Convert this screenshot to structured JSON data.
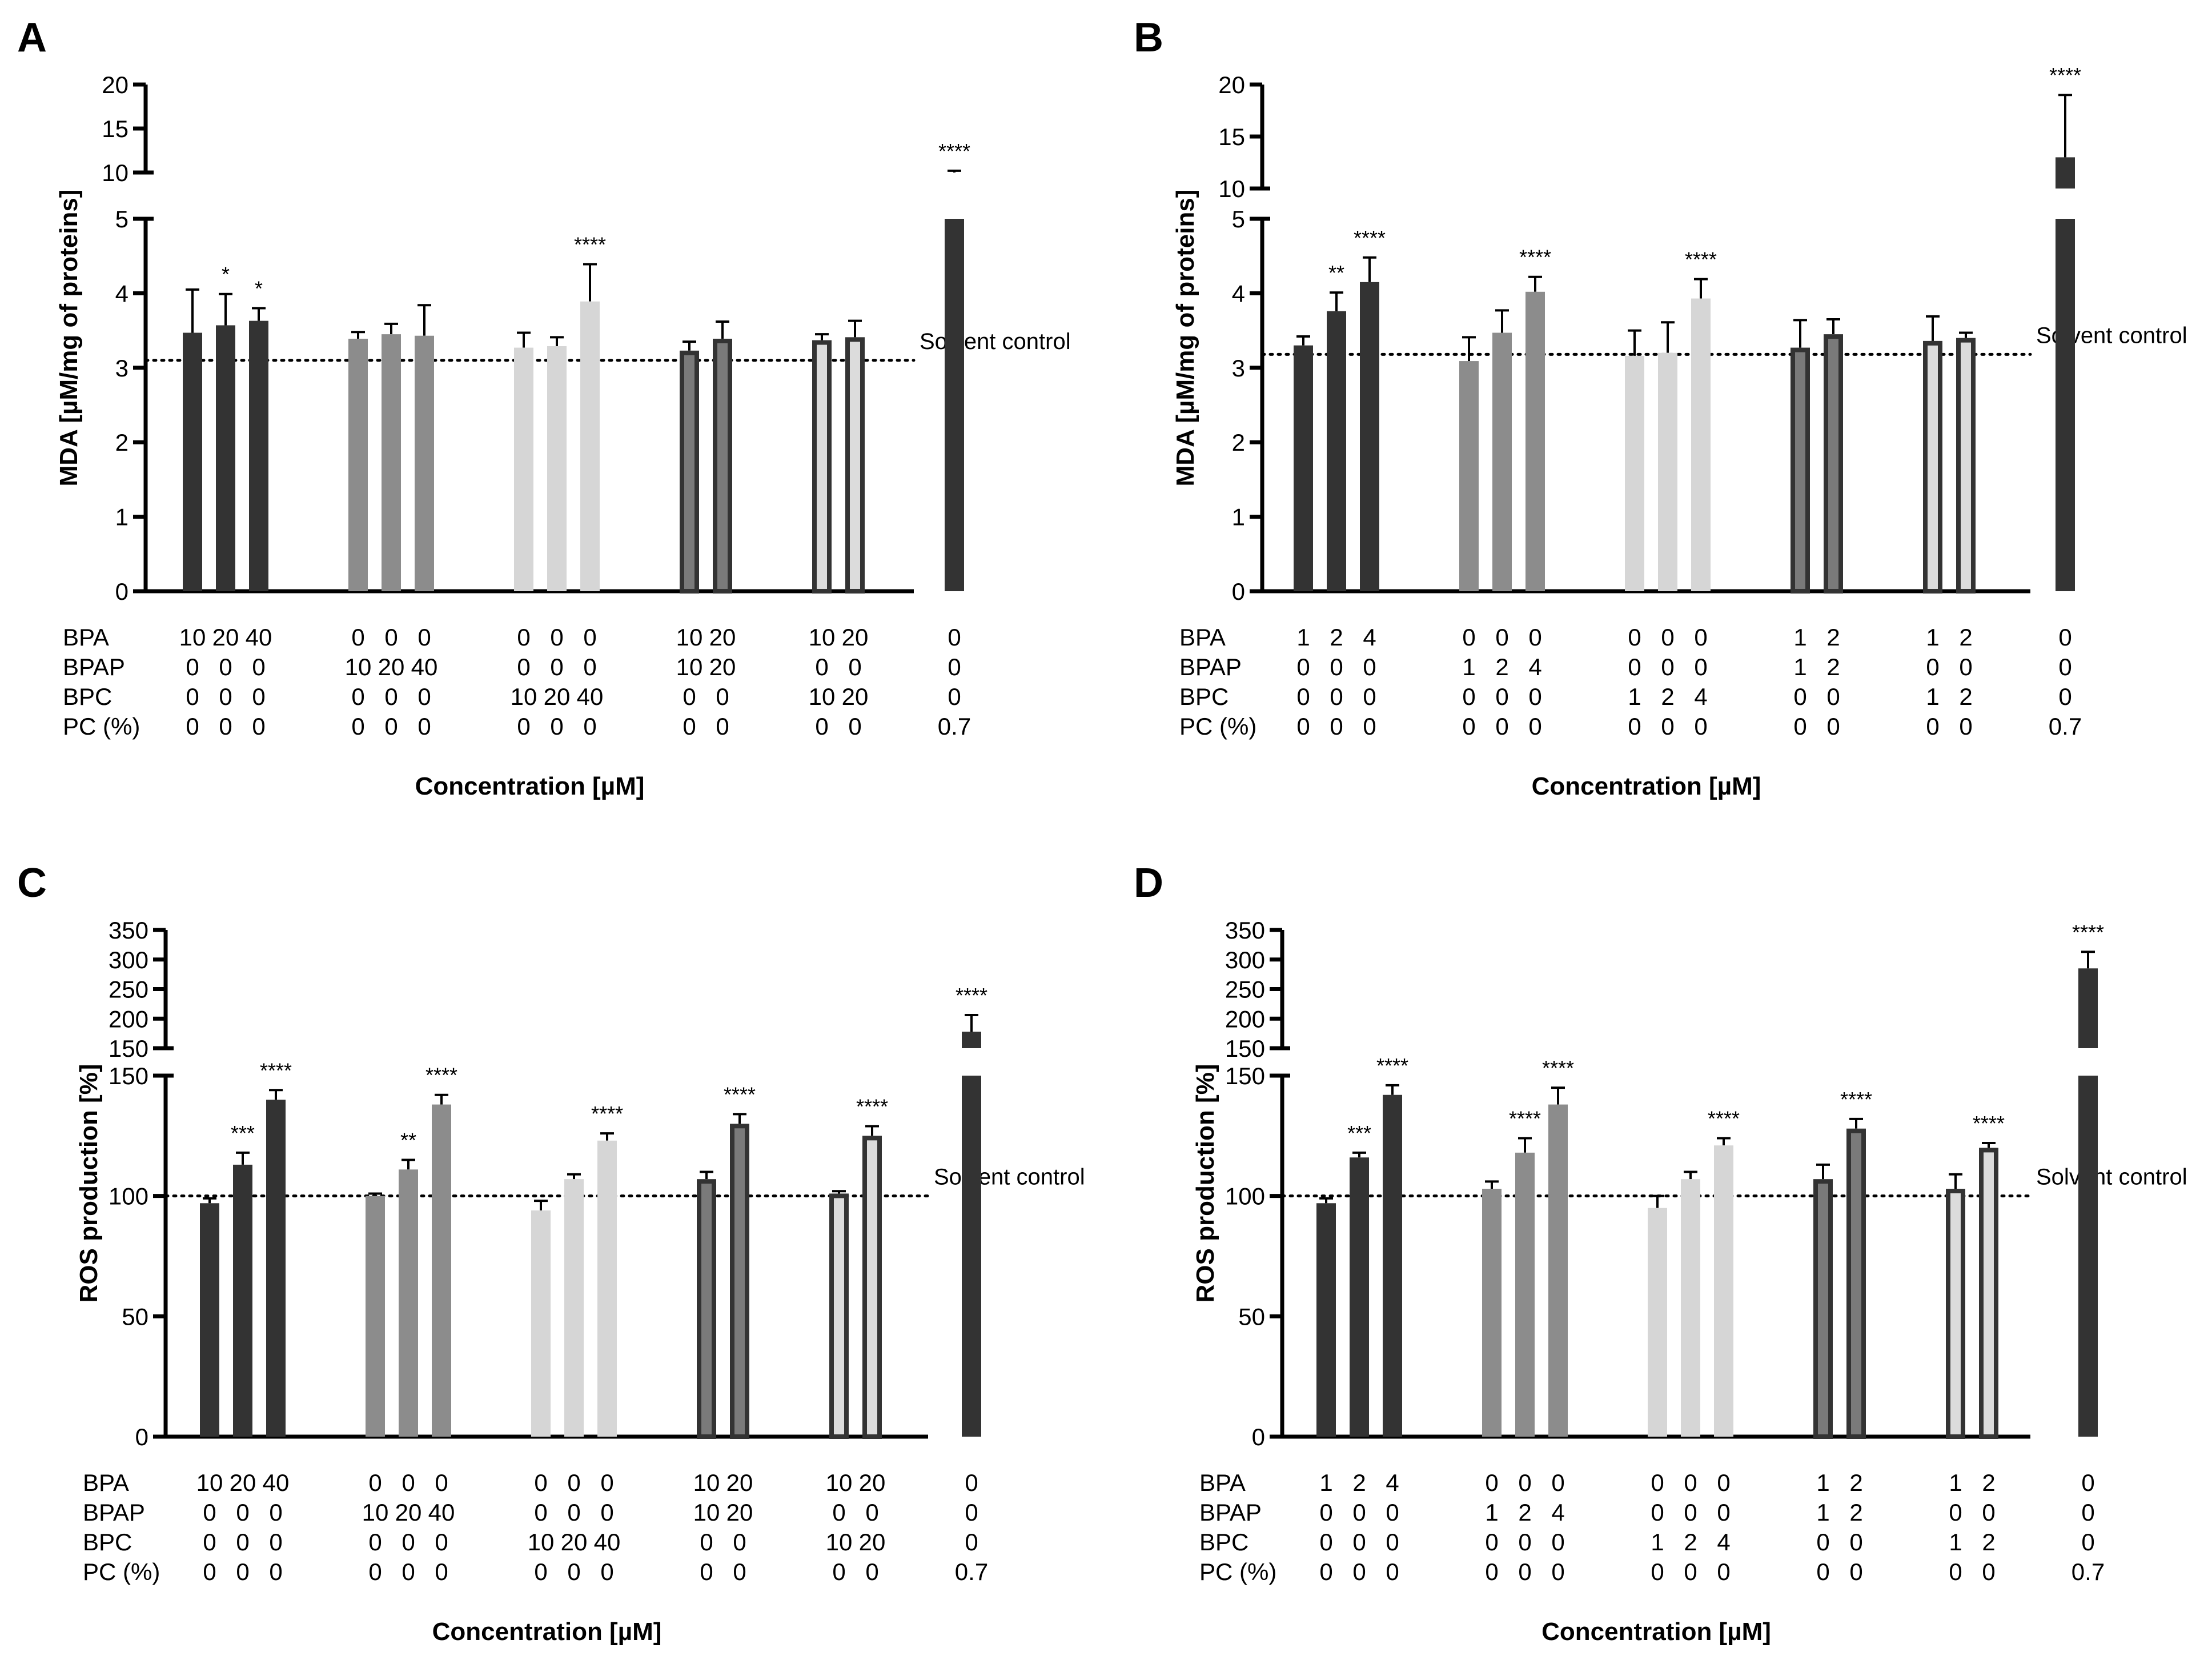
{
  "chart_data": [
    {
      "panel": "A",
      "type": "bar",
      "ylabel": "MDA [µM/mg of proteins]",
      "xlabel": "Concentration [µM]",
      "reference_label": "Solvent control",
      "reference_value": 3.1,
      "axis_break": true,
      "lower_axis": {
        "range": [
          0,
          5
        ],
        "ticks": [
          "0",
          "1",
          "2",
          "3",
          "4",
          "5"
        ]
      },
      "upper_axis": {
        "range": [
          10,
          20
        ],
        "ticks": [
          "10",
          "15",
          "20"
        ]
      },
      "row_labels": [
        "BPA",
        "BPAP",
        "BPC",
        "PC (%)"
      ],
      "groups": [
        {
          "name": "BPA",
          "color": "#333333",
          "outline": "#333333",
          "bars": [
            {
              "labels": [
                "10",
                "0",
                "0",
                "0"
              ],
              "value": 3.47,
              "error": 0.58,
              "sig": ""
            },
            {
              "labels": [
                "20",
                "0",
                "0",
                "0"
              ],
              "value": 3.57,
              "error": 0.42,
              "sig": "*"
            },
            {
              "labels": [
                "40",
                "0",
                "0",
                "0"
              ],
              "value": 3.63,
              "error": 0.17,
              "sig": "*"
            }
          ]
        },
        {
          "name": "BPAP",
          "color": "#8c8c8c",
          "outline": "#8c8c8c",
          "bars": [
            {
              "labels": [
                "0",
                "10",
                "0",
                "0"
              ],
              "value": 3.39,
              "error": 0.09,
              "sig": ""
            },
            {
              "labels": [
                "0",
                "20",
                "0",
                "0"
              ],
              "value": 3.45,
              "error": 0.14,
              "sig": ""
            },
            {
              "labels": [
                "0",
                "40",
                "0",
                "0"
              ],
              "value": 3.43,
              "error": 0.41,
              "sig": ""
            }
          ]
        },
        {
          "name": "BPC",
          "color": "#d6d6d6",
          "outline": "#d6d6d6",
          "bars": [
            {
              "labels": [
                "0",
                "0",
                "10",
                "0"
              ],
              "value": 3.27,
              "error": 0.2,
              "sig": ""
            },
            {
              "labels": [
                "0",
                "0",
                "20",
                "0"
              ],
              "value": 3.29,
              "error": 0.12,
              "sig": ""
            },
            {
              "labels": [
                "0",
                "0",
                "40",
                "0"
              ],
              "value": 3.89,
              "error": 0.5,
              "sig": "****"
            }
          ]
        },
        {
          "name": "BPA+BPAP",
          "color": "#7a7a7a",
          "outline": "#333333",
          "bars": [
            {
              "labels": [
                "10",
                "10",
                "0",
                "0"
              ],
              "value": 3.23,
              "error": 0.12,
              "sig": ""
            },
            {
              "labels": [
                "20",
                "20",
                "0",
                "0"
              ],
              "value": 3.39,
              "error": 0.23,
              "sig": ""
            }
          ]
        },
        {
          "name": "BPA+BPC",
          "color": "#dcdcdc",
          "outline": "#333333",
          "bars": [
            {
              "labels": [
                "10",
                "0",
                "10",
                "0"
              ],
              "value": 3.37,
              "error": 0.08,
              "sig": ""
            },
            {
              "labels": [
                "20",
                "0",
                "20",
                "0"
              ],
              "value": 3.41,
              "error": 0.22,
              "sig": ""
            }
          ]
        },
        {
          "name": "PC",
          "color": "#333333",
          "outline": "#333333",
          "bars": [
            {
              "labels": [
                "0",
                "0",
                "0",
                "0.7"
              ],
              "value": 8.5,
              "error": 1.7,
              "sig": "****"
            }
          ]
        }
      ]
    },
    {
      "panel": "B",
      "type": "bar",
      "ylabel": "MDA [µM/mg of proteins]",
      "xlabel": "Concentration [µM]",
      "reference_label": "Solvent control",
      "reference_value": 3.18,
      "axis_break": true,
      "lower_axis": {
        "range": [
          0,
          5
        ],
        "ticks": [
          "0",
          "1",
          "2",
          "3",
          "4",
          "5"
        ]
      },
      "upper_axis": {
        "range": [
          10,
          20
        ],
        "ticks": [
          "10",
          "15",
          "20"
        ]
      },
      "row_labels": [
        "BPA",
        "BPAP",
        "BPC",
        "PC (%)"
      ],
      "groups": [
        {
          "name": "BPA",
          "color": "#333333",
          "outline": "#333333",
          "bars": [
            {
              "labels": [
                "1",
                "0",
                "0",
                "0"
              ],
              "value": 3.3,
              "error": 0.12,
              "sig": ""
            },
            {
              "labels": [
                "2",
                "0",
                "0",
                "0"
              ],
              "value": 3.76,
              "error": 0.25,
              "sig": "**"
            },
            {
              "labels": [
                "4",
                "0",
                "0",
                "0"
              ],
              "value": 4.15,
              "error": 0.33,
              "sig": "****"
            }
          ]
        },
        {
          "name": "BPAP",
          "color": "#8c8c8c",
          "outline": "#8c8c8c",
          "bars": [
            {
              "labels": [
                "0",
                "1",
                "0",
                "0"
              ],
              "value": 3.09,
              "error": 0.32,
              "sig": ""
            },
            {
              "labels": [
                "0",
                "2",
                "0",
                "0"
              ],
              "value": 3.47,
              "error": 0.3,
              "sig": ""
            },
            {
              "labels": [
                "0",
                "4",
                "0",
                "0"
              ],
              "value": 4.02,
              "error": 0.2,
              "sig": "****"
            }
          ]
        },
        {
          "name": "BPC",
          "color": "#d6d6d6",
          "outline": "#d6d6d6",
          "bars": [
            {
              "labels": [
                "0",
                "0",
                "1",
                "0"
              ],
              "value": 3.16,
              "error": 0.34,
              "sig": ""
            },
            {
              "labels": [
                "0",
                "0",
                "2",
                "0"
              ],
              "value": 3.2,
              "error": 0.41,
              "sig": ""
            },
            {
              "labels": [
                "0",
                "0",
                "4",
                "0"
              ],
              "value": 3.93,
              "error": 0.26,
              "sig": "****"
            }
          ]
        },
        {
          "name": "BPA+BPAP",
          "color": "#7a7a7a",
          "outline": "#333333",
          "bars": [
            {
              "labels": [
                "1",
                "1",
                "0",
                "0"
              ],
              "value": 3.27,
              "error": 0.37,
              "sig": ""
            },
            {
              "labels": [
                "2",
                "2",
                "0",
                "0"
              ],
              "value": 3.45,
              "error": 0.2,
              "sig": ""
            }
          ]
        },
        {
          "name": "BPA+BPC",
          "color": "#dcdcdc",
          "outline": "#333333",
          "bars": [
            {
              "labels": [
                "1",
                "0",
                "1",
                "0"
              ],
              "value": 3.36,
              "error": 0.33,
              "sig": ""
            },
            {
              "labels": [
                "2",
                "0",
                "2",
                "0"
              ],
              "value": 3.4,
              "error": 0.07,
              "sig": ""
            }
          ]
        },
        {
          "name": "PC",
          "color": "#333333",
          "outline": "#333333",
          "bars": [
            {
              "labels": [
                "0",
                "0",
                "0",
                "0.7"
              ],
              "value": 13.0,
              "error": 6.0,
              "sig": "****"
            }
          ]
        }
      ]
    },
    {
      "panel": "C",
      "type": "bar",
      "ylabel": "ROS production [%]",
      "xlabel": "Concentration [µM]",
      "reference_label": "Solvent control",
      "reference_value": 100,
      "axis_break": true,
      "lower_axis": {
        "range": [
          0,
          150
        ],
        "ticks": [
          "0",
          "50",
          "100",
          "150"
        ]
      },
      "upper_axis": {
        "range": [
          150,
          350
        ],
        "ticks": [
          "150",
          "200",
          "250",
          "300",
          "350"
        ]
      },
      "row_labels": [
        "BPA",
        "BPAP",
        "BPC",
        "PC (%)"
      ],
      "groups": [
        {
          "name": "BPA",
          "color": "#333333",
          "outline": "#333333",
          "bars": [
            {
              "labels": [
                "10",
                "0",
                "0",
                "0"
              ],
              "value": 97,
              "error": 2,
              "sig": ""
            },
            {
              "labels": [
                "20",
                "0",
                "0",
                "0"
              ],
              "value": 113,
              "error": 5,
              "sig": "***"
            },
            {
              "labels": [
                "40",
                "0",
                "0",
                "0"
              ],
              "value": 140,
              "error": 4,
              "sig": "****"
            }
          ]
        },
        {
          "name": "BPAP",
          "color": "#8c8c8c",
          "outline": "#8c8c8c",
          "bars": [
            {
              "labels": [
                "0",
                "10",
                "0",
                "0"
              ],
              "value": 100,
              "error": 1,
              "sig": ""
            },
            {
              "labels": [
                "0",
                "20",
                "0",
                "0"
              ],
              "value": 111,
              "error": 4,
              "sig": "**"
            },
            {
              "labels": [
                "0",
                "40",
                "0",
                "0"
              ],
              "value": 138,
              "error": 4,
              "sig": "****"
            }
          ]
        },
        {
          "name": "BPC",
          "color": "#d6d6d6",
          "outline": "#d6d6d6",
          "bars": [
            {
              "labels": [
                "0",
                "0",
                "10",
                "0"
              ],
              "value": 94,
              "error": 4,
              "sig": ""
            },
            {
              "labels": [
                "0",
                "0",
                "20",
                "0"
              ],
              "value": 107,
              "error": 2,
              "sig": ""
            },
            {
              "labels": [
                "0",
                "0",
                "40",
                "0"
              ],
              "value": 123,
              "error": 3,
              "sig": "****"
            }
          ]
        },
        {
          "name": "BPA+BPAP",
          "color": "#7a7a7a",
          "outline": "#333333",
          "bars": [
            {
              "labels": [
                "10",
                "10",
                "0",
                "0"
              ],
              "value": 107,
              "error": 3,
              "sig": ""
            },
            {
              "labels": [
                "20",
                "20",
                "0",
                "0"
              ],
              "value": 130,
              "error": 4,
              "sig": "****"
            }
          ]
        },
        {
          "name": "BPA+BPC",
          "color": "#dcdcdc",
          "outline": "#333333",
          "bars": [
            {
              "labels": [
                "10",
                "0",
                "10",
                "0"
              ],
              "value": 101,
              "error": 1,
              "sig": ""
            },
            {
              "labels": [
                "20",
                "0",
                "20",
                "0"
              ],
              "value": 125,
              "error": 4,
              "sig": "****"
            }
          ]
        },
        {
          "name": "PC",
          "color": "#333333",
          "outline": "#333333",
          "bars": [
            {
              "labels": [
                "0",
                "0",
                "0",
                "0.7"
              ],
              "value": 178,
              "error": 28,
              "sig": "****"
            }
          ]
        }
      ]
    },
    {
      "panel": "D",
      "type": "bar",
      "ylabel": "ROS production [%]",
      "xlabel": "Concentration [µM]",
      "reference_label": "Solvent control",
      "reference_value": 100,
      "axis_break": true,
      "lower_axis": {
        "range": [
          0,
          150
        ],
        "ticks": [
          "0",
          "50",
          "100",
          "150"
        ]
      },
      "upper_axis": {
        "range": [
          150,
          350
        ],
        "ticks": [
          "150",
          "200",
          "250",
          "300",
          "350"
        ]
      },
      "row_labels": [
        "BPA",
        "BPAP",
        "BPC",
        "PC (%)"
      ],
      "groups": [
        {
          "name": "BPA",
          "color": "#333333",
          "outline": "#333333",
          "bars": [
            {
              "labels": [
                "1",
                "0",
                "0",
                "0"
              ],
              "value": 97,
              "error": 2,
              "sig": ""
            },
            {
              "labels": [
                "2",
                "0",
                "0",
                "0"
              ],
              "value": 116,
              "error": 2,
              "sig": "***"
            },
            {
              "labels": [
                "4",
                "0",
                "0",
                "0"
              ],
              "value": 142,
              "error": 4,
              "sig": "****"
            }
          ]
        },
        {
          "name": "BPAP",
          "color": "#8c8c8c",
          "outline": "#8c8c8c",
          "bars": [
            {
              "labels": [
                "0",
                "1",
                "0",
                "0"
              ],
              "value": 103,
              "error": 3,
              "sig": ""
            },
            {
              "labels": [
                "0",
                "2",
                "0",
                "0"
              ],
              "value": 118,
              "error": 6,
              "sig": "****"
            },
            {
              "labels": [
                "0",
                "4",
                "0",
                "0"
              ],
              "value": 138,
              "error": 7,
              "sig": "****"
            }
          ]
        },
        {
          "name": "BPC",
          "color": "#d6d6d6",
          "outline": "#d6d6d6",
          "bars": [
            {
              "labels": [
                "0",
                "0",
                "1",
                "0"
              ],
              "value": 95,
              "error": 5,
              "sig": ""
            },
            {
              "labels": [
                "0",
                "0",
                "2",
                "0"
              ],
              "value": 107,
              "error": 3,
              "sig": ""
            },
            {
              "labels": [
                "0",
                "0",
                "4",
                "0"
              ],
              "value": 121,
              "error": 3,
              "sig": "****"
            }
          ]
        },
        {
          "name": "BPA+BPAP",
          "color": "#7a7a7a",
          "outline": "#333333",
          "bars": [
            {
              "labels": [
                "1",
                "1",
                "0",
                "0"
              ],
              "value": 107,
              "error": 6,
              "sig": ""
            },
            {
              "labels": [
                "2",
                "2",
                "0",
                "0"
              ],
              "value": 128,
              "error": 4,
              "sig": "****"
            }
          ]
        },
        {
          "name": "BPA+BPC",
          "color": "#dcdcdc",
          "outline": "#333333",
          "bars": [
            {
              "labels": [
                "1",
                "0",
                "1",
                "0"
              ],
              "value": 103,
              "error": 6,
              "sig": ""
            },
            {
              "labels": [
                "2",
                "0",
                "2",
                "0"
              ],
              "value": 120,
              "error": 2,
              "sig": "****"
            }
          ]
        },
        {
          "name": "PC",
          "color": "#333333",
          "outline": "#333333",
          "bars": [
            {
              "labels": [
                "0",
                "0",
                "0",
                "0.7"
              ],
              "value": 285,
              "error": 28,
              "sig": "****"
            }
          ]
        }
      ]
    }
  ]
}
